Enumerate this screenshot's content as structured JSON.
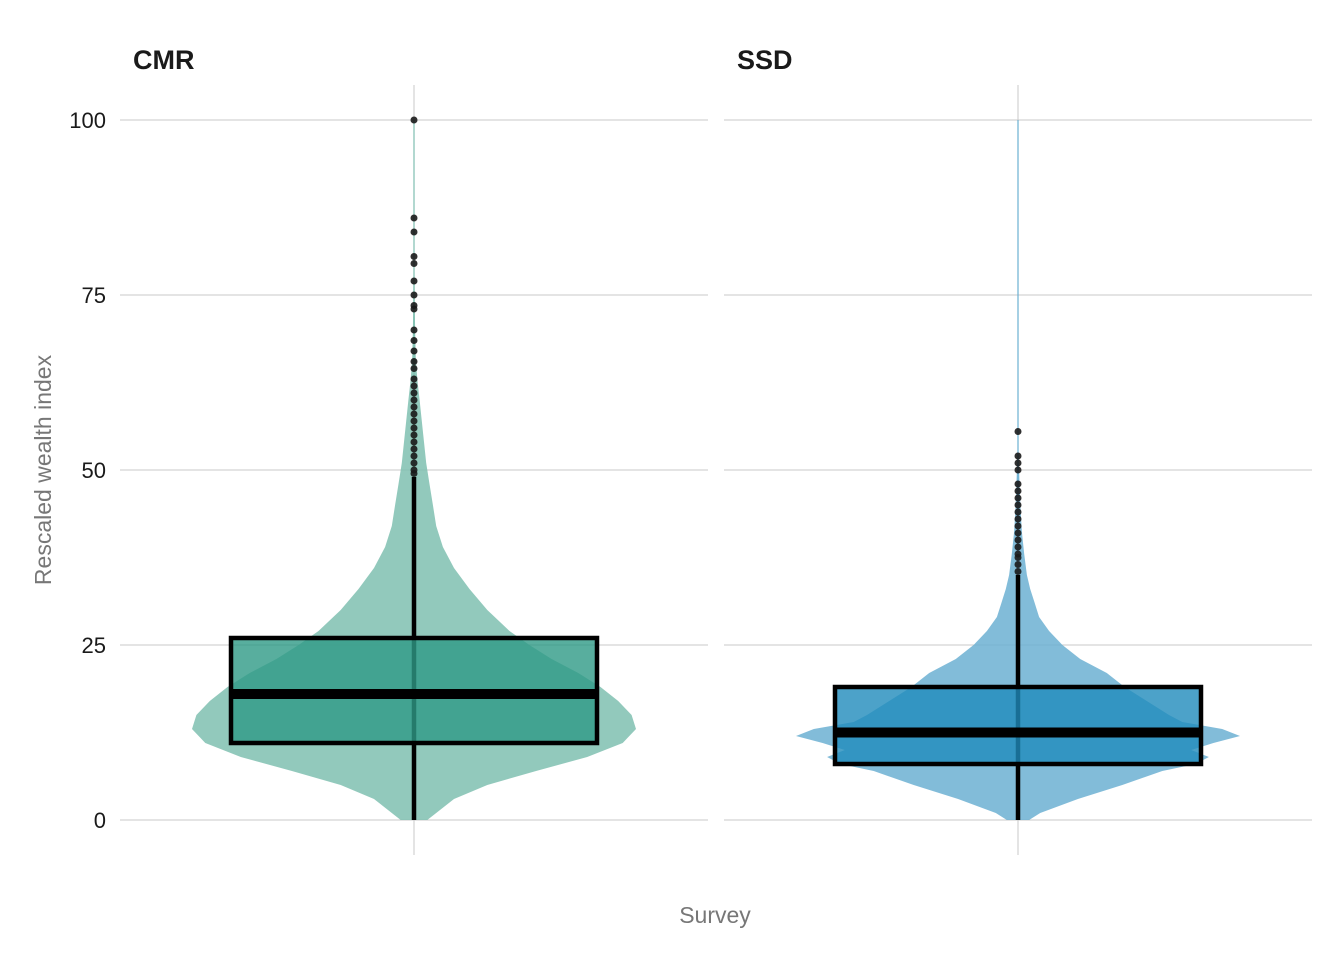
{
  "chart_data": {
    "type": "violin",
    "xlabel": "Survey",
    "ylabel": "Rescaled wealth index",
    "ylim": [
      0,
      105
    ],
    "yticks": [
      0,
      25,
      50,
      75,
      100
    ],
    "ytick_labels": [
      "0",
      "25",
      "50",
      "75",
      "100"
    ],
    "grid": true,
    "legend": "none",
    "panels": [
      {
        "name": "CMR",
        "title": "CMR",
        "violin_color": "#7fbfb0",
        "box_color": "#2e9a86",
        "density": [
          [
            0,
            0.06
          ],
          [
            1,
            0.1
          ],
          [
            3,
            0.18
          ],
          [
            5,
            0.33
          ],
          [
            7,
            0.55
          ],
          [
            9,
            0.78
          ],
          [
            11,
            0.94
          ],
          [
            13,
            1.0
          ],
          [
            15,
            0.98
          ],
          [
            17,
            0.92
          ],
          [
            19,
            0.84
          ],
          [
            21,
            0.74
          ],
          [
            23,
            0.62
          ],
          [
            25,
            0.52
          ],
          [
            27,
            0.43
          ],
          [
            30,
            0.33
          ],
          [
            33,
            0.25
          ],
          [
            36,
            0.18
          ],
          [
            39,
            0.13
          ],
          [
            42,
            0.1
          ],
          [
            45,
            0.085
          ],
          [
            48,
            0.07
          ],
          [
            51,
            0.055
          ],
          [
            54,
            0.045
          ],
          [
            57,
            0.035
          ],
          [
            60,
            0.025
          ],
          [
            63,
            0.015
          ],
          [
            66,
            0.008
          ],
          [
            70,
            0.005
          ],
          [
            75,
            0.003
          ],
          [
            80,
            0.002
          ],
          [
            90,
            0.001
          ],
          [
            100,
            0.0
          ]
        ],
        "box": {
          "q1": 11,
          "median": 18,
          "q3": 26,
          "whisker_low": 0,
          "whisker_high": 49
        },
        "outliers": [
          100,
          86,
          84,
          80.5,
          79.5,
          77,
          75,
          73.5,
          73,
          70,
          68.5,
          67,
          65.5,
          64.5,
          63,
          62,
          61,
          60,
          59,
          58,
          57,
          56,
          55,
          54,
          53,
          52,
          51,
          50,
          49.5
        ]
      },
      {
        "name": "SSD",
        "title": "SSD",
        "violin_color": "#6cb0d2",
        "box_color": "#1f8bbc",
        "density": [
          [
            0,
            0.05
          ],
          [
            1,
            0.1
          ],
          [
            3,
            0.27
          ],
          [
            5,
            0.47
          ],
          [
            7,
            0.65
          ],
          [
            8,
            0.8
          ],
          [
            9,
            0.86
          ],
          [
            10,
            0.78
          ],
          [
            11,
            0.88
          ],
          [
            12,
            1.0
          ],
          [
            13,
            0.92
          ],
          [
            14,
            0.74
          ],
          [
            15,
            0.68
          ],
          [
            17,
            0.58
          ],
          [
            19,
            0.48
          ],
          [
            21,
            0.4
          ],
          [
            23,
            0.28
          ],
          [
            25,
            0.2
          ],
          [
            27,
            0.14
          ],
          [
            29,
            0.095
          ],
          [
            31,
            0.075
          ],
          [
            33,
            0.055
          ],
          [
            35,
            0.04
          ],
          [
            38,
            0.028
          ],
          [
            41,
            0.018
          ],
          [
            44,
            0.012
          ],
          [
            47,
            0.008
          ],
          [
            50,
            0.005
          ],
          [
            53,
            0.002
          ],
          [
            56,
            0.0
          ]
        ],
        "box": {
          "q1": 8,
          "median": 12.5,
          "q3": 19,
          "whisker_low": 0,
          "whisker_high": 35
        },
        "outliers": [
          55.5,
          52,
          51,
          50,
          48,
          47,
          46,
          45,
          44,
          43,
          42,
          41,
          40,
          39,
          38,
          37.5,
          36.5,
          35.5
        ]
      }
    ]
  }
}
